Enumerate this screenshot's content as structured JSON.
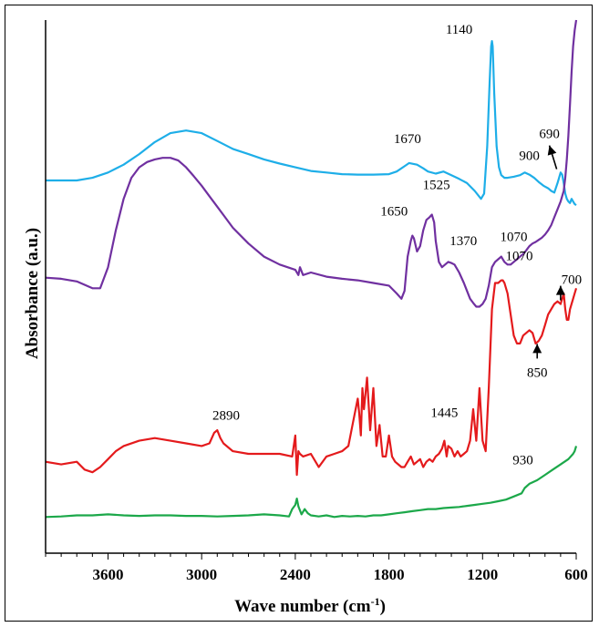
{
  "chart_data": {
    "type": "line",
    "title": "",
    "xlabel": "Wave number (cm⁻¹)",
    "ylabel": "Absorbance (a.u.)",
    "xlim": [
      4000,
      600
    ],
    "x_reversed": true,
    "ylim": [
      0,
      1
    ],
    "y_ticks_shown": false,
    "grid": false,
    "legend": "none",
    "x_ticks": [
      3600,
      3000,
      2400,
      1800,
      1200,
      600
    ],
    "x_tick_labels": [
      "3600",
      "3000",
      "2400",
      "1800",
      "1200",
      "600"
    ],
    "series": [
      {
        "color": "#1eaee8",
        "x": [
          4000,
          3800,
          3700,
          3600,
          3500,
          3400,
          3300,
          3200,
          3100,
          3000,
          2900,
          2800,
          2700,
          2600,
          2500,
          2400,
          2300,
          2200,
          2100,
          2000,
          1900,
          1800,
          1750,
          1700,
          1670,
          1620,
          1580,
          1550,
          1500,
          1450,
          1400,
          1350,
          1300,
          1250,
          1210,
          1190,
          1170,
          1155,
          1145,
          1140,
          1135,
          1125,
          1110,
          1095,
          1080,
          1060,
          1040,
          1000,
          960,
          930,
          900,
          870,
          840,
          810,
          780,
          760,
          740,
          720,
          700,
          690,
          680,
          670,
          660,
          650,
          640,
          630,
          620,
          610,
          600
        ],
        "y": [
          0.695,
          0.695,
          0.7,
          0.71,
          0.725,
          0.745,
          0.768,
          0.785,
          0.79,
          0.785,
          0.77,
          0.755,
          0.745,
          0.735,
          0.727,
          0.72,
          0.713,
          0.71,
          0.707,
          0.706,
          0.706,
          0.707,
          0.712,
          0.722,
          0.728,
          0.725,
          0.718,
          0.712,
          0.708,
          0.712,
          0.705,
          0.698,
          0.69,
          0.675,
          0.66,
          0.67,
          0.76,
          0.88,
          0.95,
          0.96,
          0.95,
          0.86,
          0.76,
          0.72,
          0.705,
          0.7,
          0.7,
          0.702,
          0.705,
          0.71,
          0.706,
          0.7,
          0.692,
          0.685,
          0.68,
          0.675,
          0.672,
          0.69,
          0.71,
          0.706,
          0.69,
          0.67,
          0.66,
          0.655,
          0.652,
          0.66,
          0.655,
          0.65,
          0.648
        ]
      },
      {
        "color": "#7030a0",
        "x": [
          4000,
          3900,
          3800,
          3700,
          3650,
          3600,
          3550,
          3500,
          3450,
          3400,
          3350,
          3300,
          3250,
          3200,
          3150,
          3100,
          3050,
          3000,
          2950,
          2900,
          2850,
          2800,
          2700,
          2600,
          2500,
          2400,
          2380,
          2370,
          2350,
          2300,
          2200,
          2100,
          2000,
          1900,
          1800,
          1750,
          1720,
          1700,
          1680,
          1660,
          1650,
          1640,
          1620,
          1600,
          1580,
          1560,
          1540,
          1525,
          1510,
          1500,
          1480,
          1460,
          1440,
          1420,
          1400,
          1380,
          1370,
          1350,
          1320,
          1300,
          1280,
          1260,
          1240,
          1220,
          1200,
          1180,
          1160,
          1140,
          1120,
          1100,
          1080,
          1070,
          1060,
          1040,
          1020,
          1000,
          980,
          960,
          940,
          920,
          900,
          880,
          860,
          840,
          820,
          800,
          780,
          760,
          740,
          720,
          700,
          690,
          680,
          670,
          660,
          650,
          640,
          630,
          620,
          610,
          600
        ],
        "y": [
          0.51,
          0.508,
          0.503,
          0.49,
          0.49,
          0.53,
          0.6,
          0.66,
          0.7,
          0.72,
          0.73,
          0.735,
          0.738,
          0.738,
          0.733,
          0.72,
          0.703,
          0.685,
          0.665,
          0.645,
          0.625,
          0.605,
          0.575,
          0.55,
          0.535,
          0.525,
          0.515,
          0.53,
          0.515,
          0.52,
          0.512,
          0.508,
          0.505,
          0.5,
          0.495,
          0.48,
          0.47,
          0.485,
          0.55,
          0.58,
          0.59,
          0.585,
          0.56,
          0.57,
          0.6,
          0.62,
          0.625,
          0.63,
          0.615,
          0.58,
          0.54,
          0.53,
          0.535,
          0.54,
          0.538,
          0.535,
          0.53,
          0.52,
          0.5,
          0.485,
          0.47,
          0.462,
          0.455,
          0.455,
          0.46,
          0.47,
          0.495,
          0.53,
          0.54,
          0.545,
          0.55,
          0.545,
          0.54,
          0.535,
          0.535,
          0.54,
          0.545,
          0.55,
          0.555,
          0.562,
          0.57,
          0.575,
          0.578,
          0.582,
          0.586,
          0.592,
          0.6,
          0.61,
          0.625,
          0.64,
          0.655,
          0.665,
          0.675,
          0.7,
          0.735,
          0.78,
          0.84,
          0.9,
          0.95,
          0.98,
          1.0
        ]
      },
      {
        "color": "#e41a1c",
        "x": [
          4000,
          3900,
          3800,
          3750,
          3700,
          3650,
          3600,
          3550,
          3500,
          3400,
          3300,
          3200,
          3100,
          3000,
          2950,
          2920,
          2900,
          2880,
          2860,
          2800,
          2700,
          2600,
          2500,
          2420,
          2400,
          2390,
          2380,
          2370,
          2350,
          2300,
          2250,
          2200,
          2150,
          2100,
          2060,
          2040,
          2020,
          2000,
          1990,
          1980,
          1970,
          1960,
          1940,
          1920,
          1900,
          1880,
          1860,
          1840,
          1820,
          1800,
          1780,
          1760,
          1740,
          1720,
          1700,
          1680,
          1660,
          1640,
          1620,
          1600,
          1580,
          1560,
          1540,
          1520,
          1500,
          1480,
          1460,
          1445,
          1430,
          1420,
          1400,
          1380,
          1360,
          1340,
          1320,
          1300,
          1280,
          1260,
          1240,
          1220,
          1200,
          1180,
          1160,
          1140,
          1120,
          1100,
          1080,
          1070,
          1060,
          1040,
          1020,
          1000,
          980,
          960,
          940,
          920,
          900,
          880,
          860,
          840,
          820,
          800,
          780,
          760,
          740,
          720,
          700,
          690,
          680,
          670,
          660,
          650,
          640,
          630,
          620,
          610,
          600
        ],
        "y": [
          0.16,
          0.155,
          0.16,
          0.145,
          0.14,
          0.15,
          0.165,
          0.18,
          0.19,
          0.2,
          0.205,
          0.2,
          0.195,
          0.19,
          0.195,
          0.215,
          0.22,
          0.205,
          0.195,
          0.18,
          0.175,
          0.175,
          0.175,
          0.17,
          0.21,
          0.135,
          0.18,
          0.175,
          0.17,
          0.175,
          0.15,
          0.17,
          0.175,
          0.18,
          0.19,
          0.22,
          0.25,
          0.28,
          0.25,
          0.21,
          0.3,
          0.26,
          0.32,
          0.22,
          0.3,
          0.19,
          0.23,
          0.17,
          0.17,
          0.21,
          0.17,
          0.16,
          0.155,
          0.15,
          0.15,
          0.16,
          0.17,
          0.155,
          0.16,
          0.165,
          0.15,
          0.16,
          0.165,
          0.16,
          0.17,
          0.175,
          0.185,
          0.2,
          0.17,
          0.19,
          0.185,
          0.17,
          0.18,
          0.17,
          0.175,
          0.18,
          0.2,
          0.26,
          0.2,
          0.3,
          0.2,
          0.18,
          0.3,
          0.45,
          0.5,
          0.5,
          0.505,
          0.505,
          0.5,
          0.48,
          0.44,
          0.4,
          0.385,
          0.385,
          0.4,
          0.405,
          0.41,
          0.405,
          0.385,
          0.39,
          0.4,
          0.42,
          0.44,
          0.45,
          0.46,
          0.465,
          0.46,
          0.47,
          0.48,
          0.45,
          0.43,
          0.43,
          0.45,
          0.46,
          0.47,
          0.48,
          0.49
        ]
      },
      {
        "color": "#1ca84a",
        "x": [
          4000,
          3900,
          3800,
          3700,
          3600,
          3500,
          3400,
          3300,
          3200,
          3100,
          3000,
          2900,
          2800,
          2700,
          2600,
          2500,
          2440,
          2420,
          2400,
          2390,
          2380,
          2360,
          2340,
          2320,
          2300,
          2250,
          2200,
          2150,
          2100,
          2050,
          2000,
          1950,
          1900,
          1850,
          1800,
          1750,
          1700,
          1650,
          1600,
          1550,
          1500,
          1450,
          1400,
          1350,
          1300,
          1250,
          1200,
          1150,
          1100,
          1050,
          1000,
          950,
          930,
          900,
          850,
          800,
          750,
          700,
          650,
          620,
          610,
          600
        ],
        "y": [
          0.055,
          0.056,
          0.058,
          0.058,
          0.06,
          0.058,
          0.057,
          0.058,
          0.058,
          0.057,
          0.057,
          0.056,
          0.057,
          0.058,
          0.06,
          0.058,
          0.056,
          0.07,
          0.078,
          0.09,
          0.075,
          0.06,
          0.07,
          0.062,
          0.058,
          0.056,
          0.058,
          0.055,
          0.057,
          0.056,
          0.057,
          0.056,
          0.058,
          0.058,
          0.06,
          0.062,
          0.064,
          0.066,
          0.068,
          0.07,
          0.07,
          0.072,
          0.073,
          0.074,
          0.076,
          0.078,
          0.08,
          0.082,
          0.085,
          0.088,
          0.094,
          0.1,
          0.11,
          0.118,
          0.125,
          0.135,
          0.145,
          0.155,
          0.165,
          0.175,
          0.18,
          0.19
        ]
      }
    ],
    "annotations": [
      {
        "text": "1140",
        "x": 1140,
        "series": 0
      },
      {
        "text": "1670",
        "x": 1670,
        "series": 0
      },
      {
        "text": "900",
        "x": 900,
        "series": 0
      },
      {
        "text": "690",
        "x": 690,
        "series": 0
      },
      {
        "text": "1650",
        "x": 1650,
        "series": 1
      },
      {
        "text": "1525",
        "x": 1525,
        "series": 1
      },
      {
        "text": "1370",
        "x": 1370,
        "series": 1
      },
      {
        "text": "1070",
        "x": 1070,
        "series": 1
      },
      {
        "text": "700",
        "x": 700,
        "series": 2
      },
      {
        "text": "1070",
        "x": 1070,
        "series": 2
      },
      {
        "text": "1445",
        "x": 1445,
        "series": 2
      },
      {
        "text": "850",
        "x": 850,
        "series": 2
      },
      {
        "text": "2890",
        "x": 2890,
        "series": 2
      },
      {
        "text": "930",
        "x": 930,
        "series": 3
      }
    ]
  }
}
